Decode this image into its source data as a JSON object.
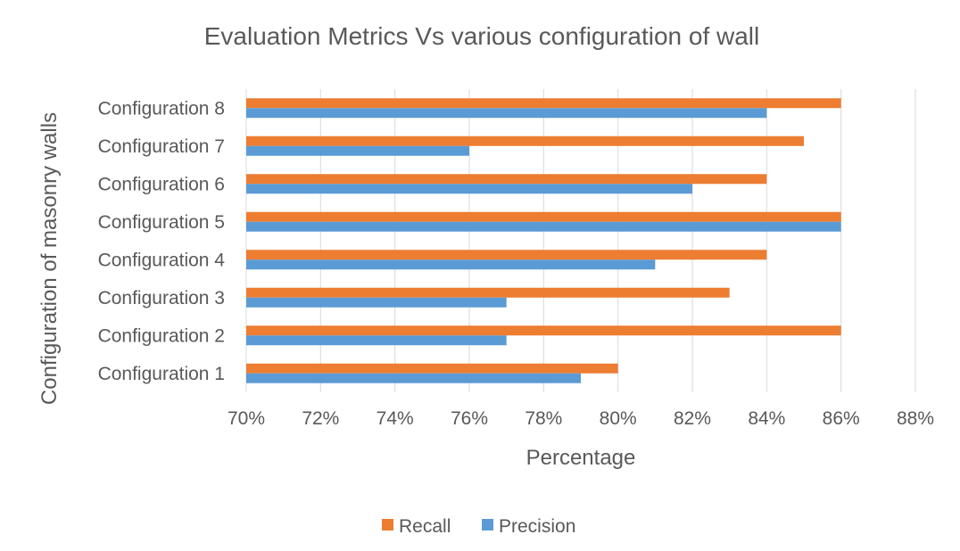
{
  "chart_data": {
    "type": "bar",
    "orientation": "horizontal",
    "title": "Evaluation Metrics Vs various configuration of wall",
    "xlabel": "Percentage",
    "ylabel": "Configuration of masonry walls",
    "categories": [
      "Configuration 1",
      "Configuration 2",
      "Configuration 3",
      "Configuration 4",
      "Configuration 5",
      "Configuration 6",
      "Configuration 7",
      "Configuration 8"
    ],
    "series": [
      {
        "name": "Recall",
        "color": "#ED7D31",
        "values": [
          80,
          86,
          83,
          84,
          86,
          84,
          85,
          86
        ]
      },
      {
        "name": "Precision",
        "color": "#5B9BD5",
        "values": [
          79,
          77,
          77,
          81,
          86,
          82,
          76,
          84
        ]
      }
    ],
    "xlim": [
      70,
      88
    ],
    "xticks": [
      70,
      72,
      74,
      76,
      78,
      80,
      82,
      84,
      86,
      88
    ],
    "tick_labels": [
      "70%",
      "72%",
      "74%",
      "76%",
      "78%",
      "80%",
      "82%",
      "84%",
      "86%",
      "88%"
    ],
    "grid": "vertical",
    "legend_position": "bottom"
  }
}
